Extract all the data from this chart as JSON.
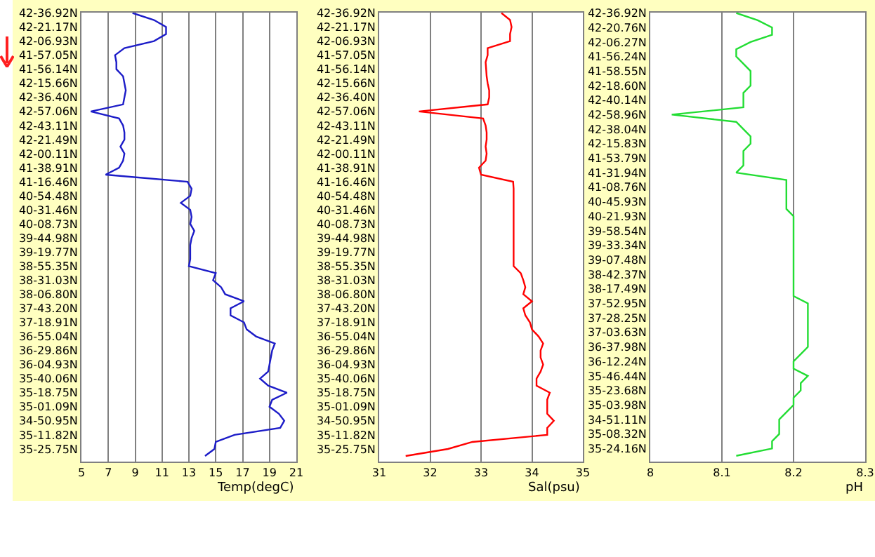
{
  "chart_data": [
    {
      "type": "line",
      "orientation": "horizontal",
      "xlabel": "Temp(degC)",
      "xlim": [
        5,
        21
      ],
      "xticks": [
        5,
        7,
        9,
        11,
        13,
        15,
        17,
        19,
        21
      ],
      "grid": "x",
      "categories": [
        "42-36.92N",
        null,
        "42-21.17N",
        null,
        "42-06.93N",
        null,
        "41-57.05N",
        null,
        "41-56.14N",
        null,
        "42-15.66N",
        null,
        "42-36.40N",
        null,
        "42-57.06N",
        null,
        "42-43.11N",
        null,
        "42-21.49N",
        null,
        "42-00.11N",
        null,
        "41-38.91N",
        null,
        "41-16.46N",
        null,
        "40-54.48N",
        null,
        "40-31.46N",
        null,
        "40-08.73N",
        null,
        "39-44.98N",
        null,
        "39-19.77N",
        null,
        "38-55.35N",
        null,
        "38-31.03N",
        null,
        "38-06.80N",
        null,
        "37-43.20N",
        null,
        "37-18.91N",
        null,
        "36-55.04N",
        null,
        "36-29.86N",
        null,
        "36-04.93N",
        null,
        "35-40.06N",
        null,
        "35-18.75N",
        null,
        "35-01.09N",
        null,
        "34-50.95N",
        null,
        "35-11.82N",
        null,
        "35-25.75N",
        null
      ],
      "series": [
        {
          "color": "#1c1cc8",
          "values": [
            8.8,
            10.4,
            11.3,
            11.3,
            10.4,
            8.2,
            7.5,
            7.6,
            7.6,
            8.1,
            8.2,
            8.3,
            8.2,
            8.1,
            5.7,
            7.8,
            8.1,
            8.2,
            8.2,
            7.9,
            8.2,
            8.1,
            7.8,
            6.8,
            12.9,
            13.2,
            13.1,
            12.4,
            13.1,
            13.2,
            13.1,
            13.4,
            13.2,
            13.1,
            13.1,
            13.1,
            13.0,
            15.0,
            14.8,
            15.4,
            15.7,
            17.1,
            16.1,
            16.1,
            17.1,
            17.3,
            18.0,
            19.4,
            19.2,
            19.1,
            19.0,
            18.9,
            18.3,
            18.9,
            20.3,
            19.2,
            19.0,
            19.7,
            20.1,
            19.8,
            16.4,
            15.0,
            14.9,
            14.2
          ]
        }
      ]
    },
    {
      "type": "line",
      "orientation": "horizontal",
      "xlabel": "Sal(psu)",
      "xlim": [
        31,
        35
      ],
      "xticks": [
        31,
        32,
        33,
        34,
        35
      ],
      "grid": "x",
      "categories": [
        "42-36.92N",
        null,
        "42-21.17N",
        null,
        "42-06.93N",
        null,
        "41-57.05N",
        null,
        "41-56.14N",
        null,
        "42-15.66N",
        null,
        "42-36.40N",
        null,
        "42-57.06N",
        null,
        "42-43.11N",
        null,
        "42-21.49N",
        null,
        "42-00.11N",
        null,
        "41-38.91N",
        null,
        "41-16.46N",
        null,
        "40-54.48N",
        null,
        "40-31.46N",
        null,
        "40-08.73N",
        null,
        "39-44.98N",
        null,
        "39-19.77N",
        null,
        "38-55.35N",
        null,
        "38-31.03N",
        null,
        "38-06.80N",
        null,
        "37-43.20N",
        null,
        "37-18.91N",
        null,
        "36-55.04N",
        null,
        "36-29.86N",
        null,
        "36-04.93N",
        null,
        "35-40.06N",
        null,
        "35-18.75N",
        null,
        "35-01.09N",
        null,
        "34-50.95N",
        null,
        "35-11.82N",
        null,
        "35-25.75N",
        null
      ],
      "series": [
        {
          "color": "#ff0000",
          "values": [
            33.4,
            33.57,
            33.6,
            33.57,
            33.57,
            33.13,
            33.13,
            33.09,
            33.1,
            33.11,
            33.13,
            33.16,
            33.16,
            33.13,
            31.78,
            33.04,
            33.09,
            33.11,
            33.11,
            33.09,
            33.11,
            33.09,
            32.96,
            33.0,
            33.63,
            33.64,
            33.64,
            33.64,
            33.64,
            33.64,
            33.64,
            33.64,
            33.64,
            33.64,
            33.64,
            33.64,
            33.64,
            33.78,
            33.83,
            33.87,
            33.83,
            34.0,
            33.83,
            33.87,
            33.96,
            34.0,
            34.13,
            34.22,
            34.17,
            34.17,
            34.22,
            34.17,
            34.09,
            34.09,
            34.35,
            34.3,
            34.3,
            34.3,
            34.43,
            34.3,
            34.3,
            32.83,
            32.35,
            31.52
          ]
        }
      ]
    },
    {
      "type": "line",
      "orientation": "horizontal",
      "xlabel": "pH",
      "xlim": [
        8,
        8.3
      ],
      "xticks": [
        8,
        8.1,
        8.2,
        8.3
      ],
      "grid": "x",
      "categories": [
        "42-36.92N",
        null,
        "42-20.76N",
        null,
        "42-06.27N",
        null,
        "41-56.24N",
        null,
        "41-58.55N",
        null,
        "42-18.60N",
        null,
        "42-40.14N",
        null,
        "42-58.96N",
        null,
        "42-38.04N",
        null,
        "42-15.83N",
        null,
        "41-53.79N",
        null,
        "41-31.94N",
        null,
        "41-08.76N",
        null,
        "40-45.93N",
        null,
        "40-21.93N",
        null,
        "39-58.54N",
        null,
        "39-33.34N",
        null,
        "39-07.48N",
        null,
        "38-42.37N",
        null,
        "38-17.49N",
        null,
        "37-52.95N",
        null,
        "37-28.25N",
        null,
        "37-03.63N",
        null,
        "36-37.98N",
        null,
        "36-12.24N",
        null,
        "35-46.44N",
        null,
        "35-23.68N",
        null,
        "35-03.98N",
        null,
        "34-51.11N",
        null,
        "35-08.32N",
        null,
        "35-24.16N",
        null
      ],
      "series": [
        {
          "color": "#22dd33",
          "values": [
            8.12,
            8.15,
            8.17,
            8.17,
            8.14,
            8.12,
            8.12,
            8.13,
            8.14,
            8.14,
            8.14,
            8.13,
            8.13,
            8.13,
            8.03,
            8.12,
            8.13,
            8.14,
            8.14,
            8.13,
            8.13,
            8.13,
            8.12,
            8.19,
            8.19,
            8.19,
            8.19,
            8.19,
            8.2,
            8.2,
            8.2,
            8.2,
            8.2,
            8.2,
            8.2,
            8.2,
            8.2,
            8.2,
            8.2,
            8.2,
            8.22,
            8.22,
            8.22,
            8.22,
            8.22,
            8.22,
            8.22,
            8.21,
            8.2,
            8.2,
            8.22,
            8.21,
            8.21,
            8.2,
            8.2,
            8.19,
            8.18,
            8.18,
            8.18,
            8.17,
            8.17,
            8.12
          ]
        }
      ]
    }
  ]
}
